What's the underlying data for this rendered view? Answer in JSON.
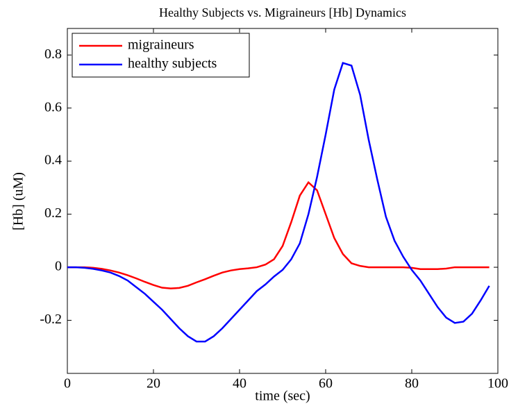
{
  "chart_data": {
    "type": "line",
    "title": "Healthy Subjects vs. Migraineurs [Hb] Dynamics",
    "x_label": "time (sec)",
    "y_label": "[Hb] (uM)",
    "x": [
      0,
      2,
      4,
      6,
      8,
      10,
      12,
      14,
      16,
      18,
      20,
      22,
      24,
      26,
      28,
      30,
      32,
      34,
      36,
      38,
      40,
      42,
      44,
      46,
      48,
      50,
      52,
      54,
      56,
      58,
      60,
      62,
      64,
      66,
      68,
      70,
      72,
      74,
      76,
      78,
      80,
      82,
      84,
      86,
      88,
      90,
      92,
      94,
      96,
      98
    ],
    "series": [
      {
        "name": "migraineurs",
        "color": "#ff0000",
        "values": [
          0,
          0,
          0,
          -0.002,
          -0.006,
          -0.012,
          -0.02,
          -0.03,
          -0.042,
          -0.055,
          -0.067,
          -0.077,
          -0.08,
          -0.078,
          -0.07,
          -0.057,
          -0.045,
          -0.032,
          -0.02,
          -0.012,
          -0.007,
          -0.004,
          0,
          0.01,
          0.03,
          0.08,
          0.17,
          0.27,
          0.32,
          0.29,
          0.2,
          0.11,
          0.05,
          0.015,
          0.005,
          0,
          0,
          0,
          0,
          0,
          -0.002,
          -0.007,
          -0.007,
          -0.007,
          -0.005,
          0,
          0,
          0,
          0,
          0
        ]
      },
      {
        "name": "healthy subjects",
        "color": "#0000ff",
        "values": [
          0,
          0,
          -0.002,
          -0.006,
          -0.012,
          -0.02,
          -0.033,
          -0.05,
          -0.075,
          -0.1,
          -0.13,
          -0.16,
          -0.195,
          -0.23,
          -0.26,
          -0.28,
          -0.28,
          -0.26,
          -0.23,
          -0.195,
          -0.16,
          -0.125,
          -0.09,
          -0.065,
          -0.035,
          -0.01,
          0.03,
          0.09,
          0.2,
          0.34,
          0.5,
          0.67,
          0.77,
          0.76,
          0.65,
          0.48,
          0.33,
          0.19,
          0.1,
          0.04,
          -0.01,
          -0.05,
          -0.1,
          -0.15,
          -0.19,
          -0.21,
          -0.205,
          -0.175,
          -0.125,
          -0.07
        ]
      }
    ],
    "xlim": [
      0,
      100
    ],
    "xticks": [
      0,
      20,
      40,
      60,
      80,
      100
    ],
    "ylim": [
      -0.4,
      0.9
    ],
    "yticks": [
      -0.2,
      0,
      0.2,
      0.4,
      0.6,
      0.8
    ],
    "legend": "upper-left",
    "grid": false
  }
}
